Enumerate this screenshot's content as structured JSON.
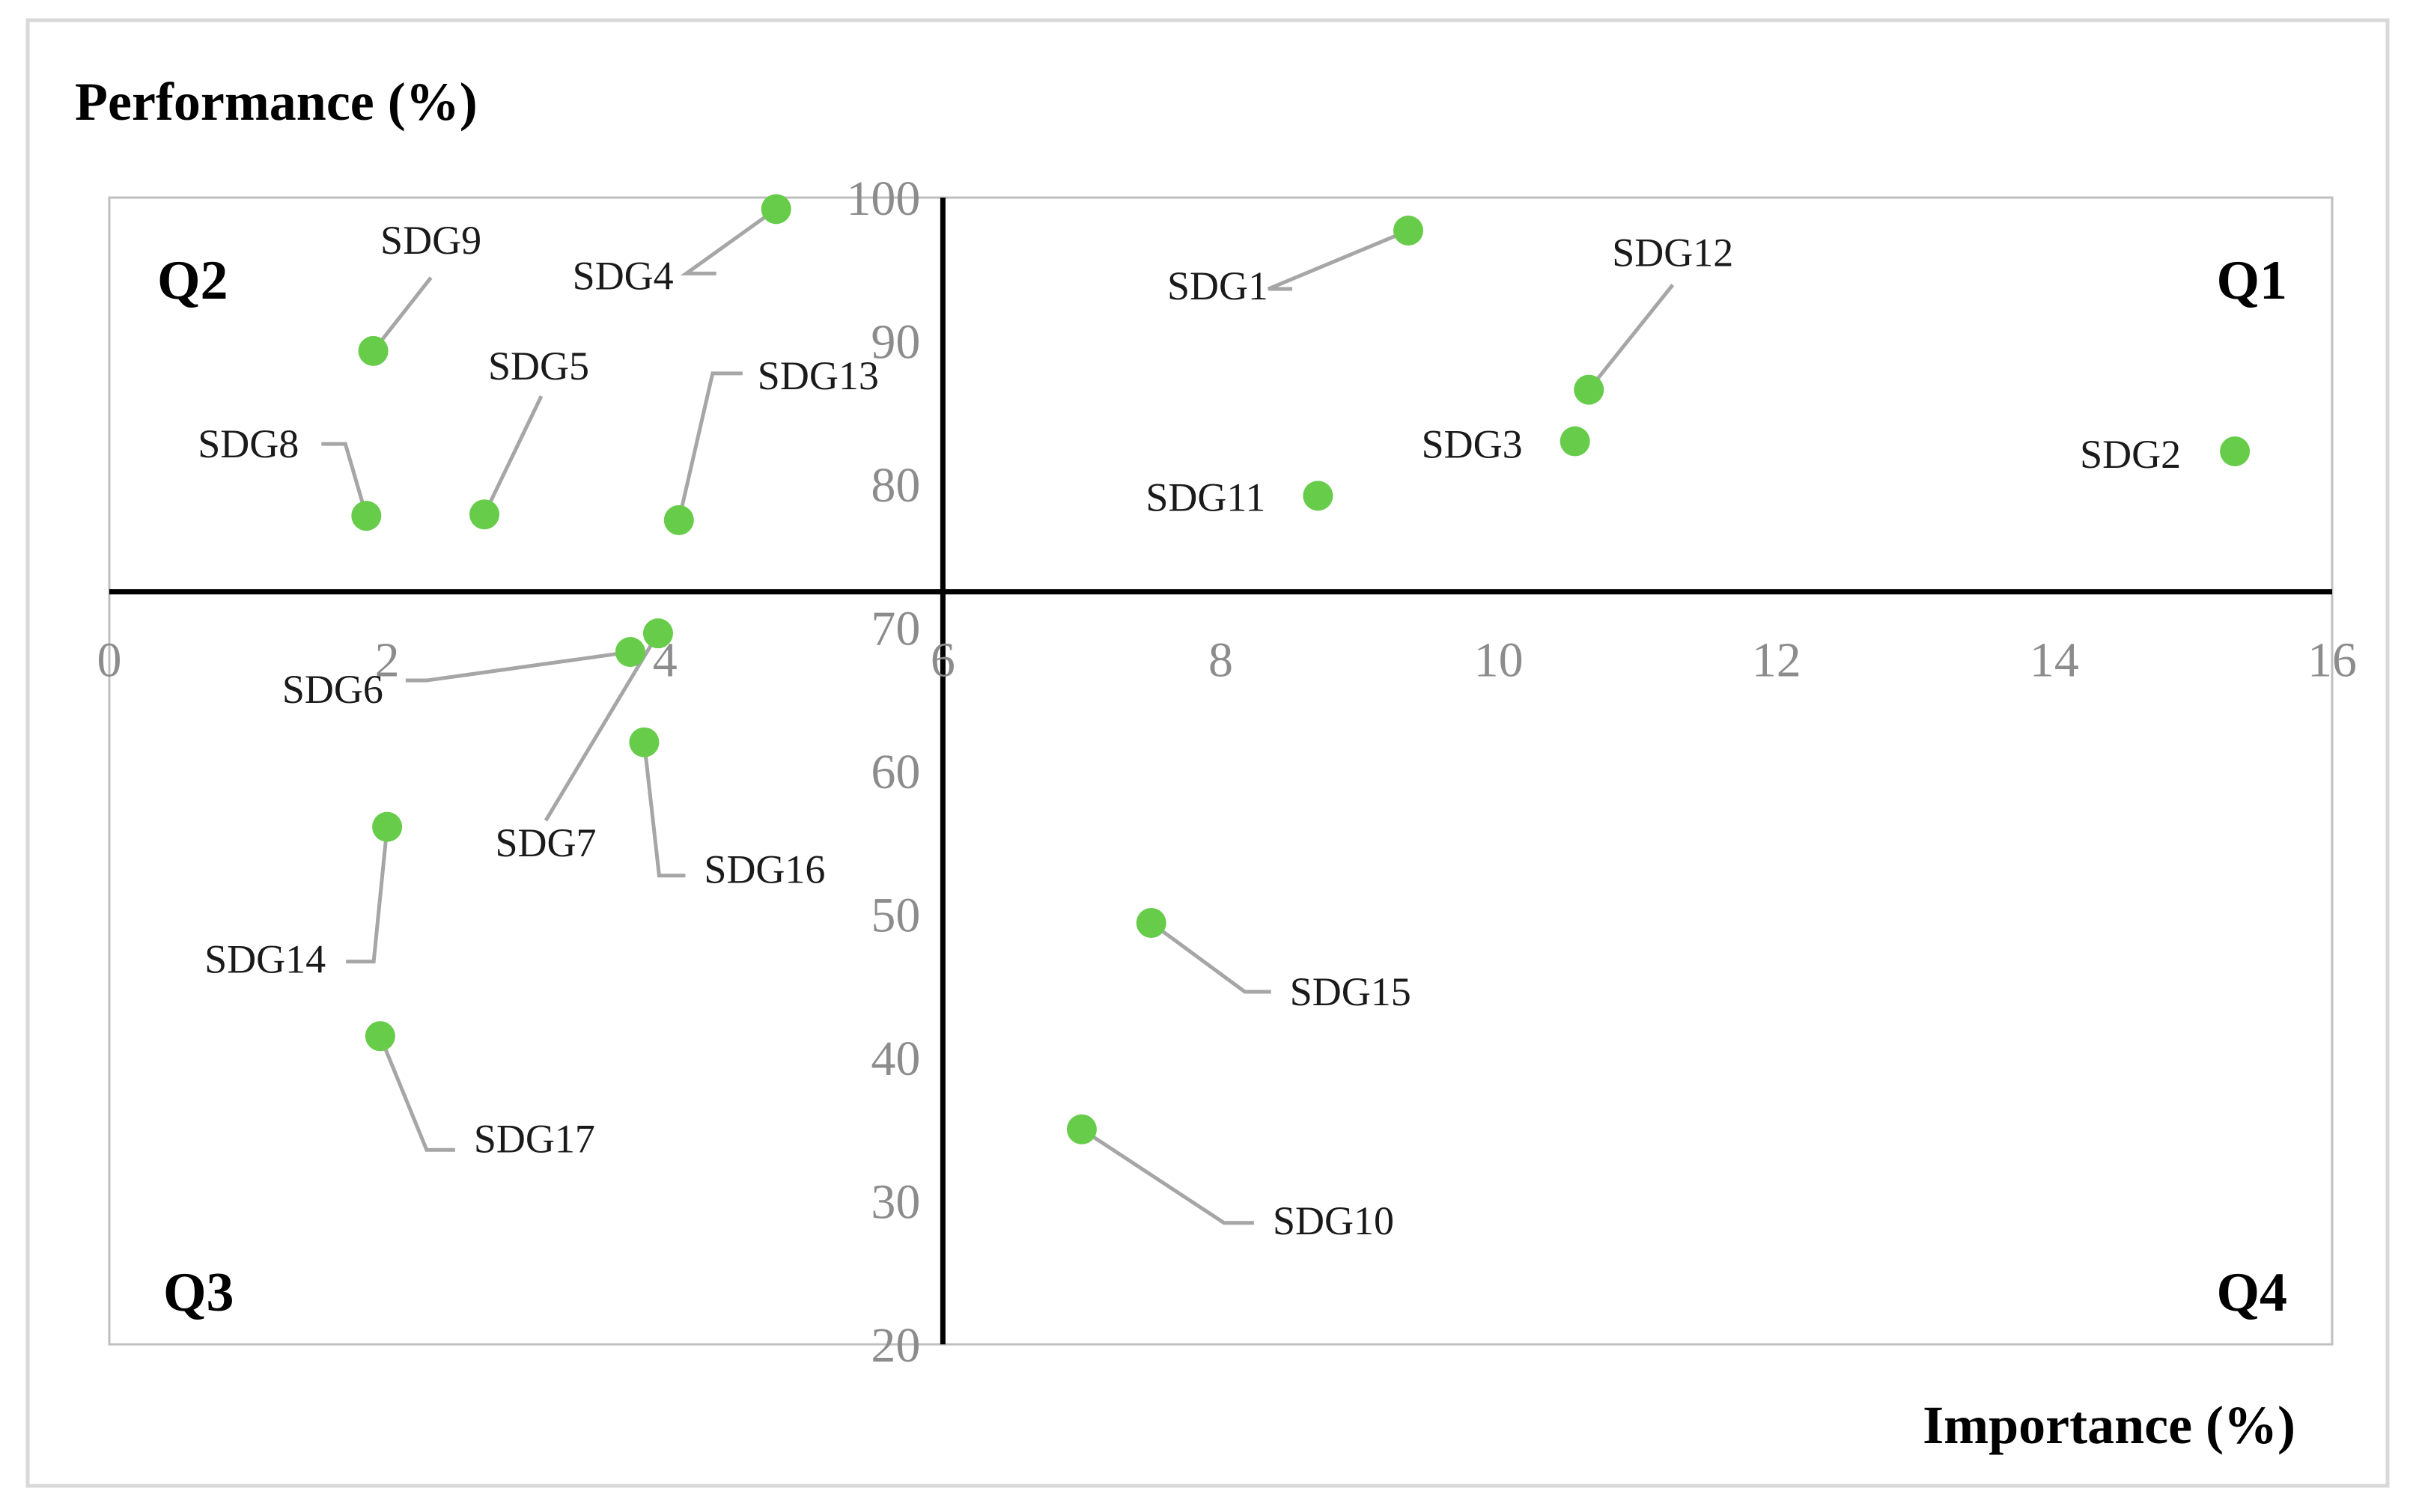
{
  "chart_data": {
    "type": "scatter",
    "title": "",
    "ylabel": "Performance (%)",
    "xlabel": "Importance (%)",
    "xlim": [
      0,
      16
    ],
    "ylim": [
      20,
      100
    ],
    "x_ticks": [
      0,
      2,
      4,
      6,
      8,
      10,
      12,
      14,
      16
    ],
    "y_ticks": [
      20,
      30,
      40,
      50,
      60,
      70,
      80,
      90,
      100
    ],
    "x_crossing": 6,
    "y_crossing": 72.5,
    "quadrants": [
      "Q1",
      "Q2",
      "Q3",
      "Q4"
    ],
    "marker_color": "#66cc4a",
    "leader_color": "#a6a6a6",
    "points": [
      {
        "label": "SDG1",
        "x": 9.35,
        "y": 97.7
      },
      {
        "label": "SDG2",
        "x": 15.3,
        "y": 82.3
      },
      {
        "label": "SDG3",
        "x": 10.55,
        "y": 83.0
      },
      {
        "label": "SDG4",
        "x": 4.8,
        "y": 99.2
      },
      {
        "label": "SDG5",
        "x": 2.7,
        "y": 77.9
      },
      {
        "label": "SDG6",
        "x": 3.75,
        "y": 68.3
      },
      {
        "label": "SDG7",
        "x": 3.95,
        "y": 69.6
      },
      {
        "label": "SDG8",
        "x": 1.85,
        "y": 77.8
      },
      {
        "label": "SDG9",
        "x": 1.9,
        "y": 89.3
      },
      {
        "label": "SDG10",
        "x": 7.0,
        "y": 35.0
      },
      {
        "label": "SDG11",
        "x": 8.7,
        "y": 79.2
      },
      {
        "label": "SDG12",
        "x": 10.65,
        "y": 86.6
      },
      {
        "label": "SDG13",
        "x": 4.1,
        "y": 77.5
      },
      {
        "label": "SDG14",
        "x": 2.0,
        "y": 56.1
      },
      {
        "label": "SDG15",
        "x": 7.5,
        "y": 49.4
      },
      {
        "label": "SDG16",
        "x": 3.85,
        "y": 62.0
      },
      {
        "label": "SDG17",
        "x": 1.95,
        "y": 41.5
      }
    ]
  }
}
